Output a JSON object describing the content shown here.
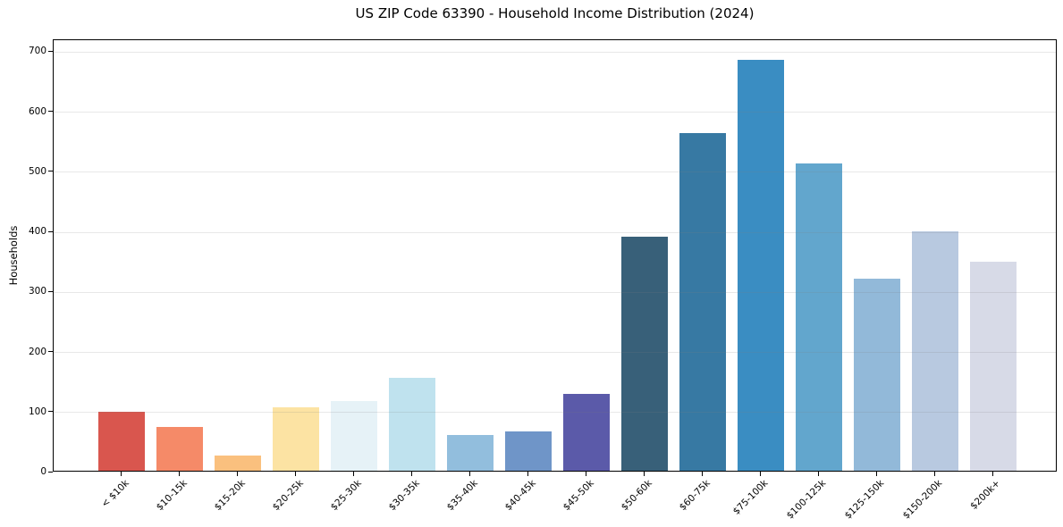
{
  "chart_data": {
    "type": "bar",
    "title": "US ZIP Code 63390 - Household Income Distribution (2024)",
    "xlabel": "",
    "ylabel": "Households",
    "ylim": [
      0,
      720
    ],
    "yticks": [
      0,
      100,
      200,
      300,
      400,
      500,
      600,
      700
    ],
    "grid": true,
    "legend": "none",
    "x_tick_rotation": 45,
    "categories": [
      "< $10k",
      "$10-15k",
      "$15-20k",
      "$20-25k",
      "$25-30k",
      "$30-35k",
      "$35-40k",
      "$40-45k",
      "$45-50k",
      "$50-60k",
      "$60-75k",
      "$75-100k",
      "$100-125k",
      "$125-150k",
      "$150-200k",
      "$200k+"
    ],
    "values": [
      98,
      73,
      25,
      105,
      116,
      154,
      60,
      66,
      128,
      390,
      563,
      685,
      512,
      320,
      398,
      348
    ],
    "bar_colors": [
      "#d9564e",
      "#f58a68",
      "#fac07e",
      "#fce3a3",
      "#e6f2f7",
      "#bfe2ee",
      "#92bedd",
      "#6f95c8",
      "#5b5aa9",
      "#386079",
      "#3779a3",
      "#3a8dc2",
      "#62a6cd",
      "#92b9d9",
      "#b8c9e0",
      "#d7dae7"
    ]
  }
}
